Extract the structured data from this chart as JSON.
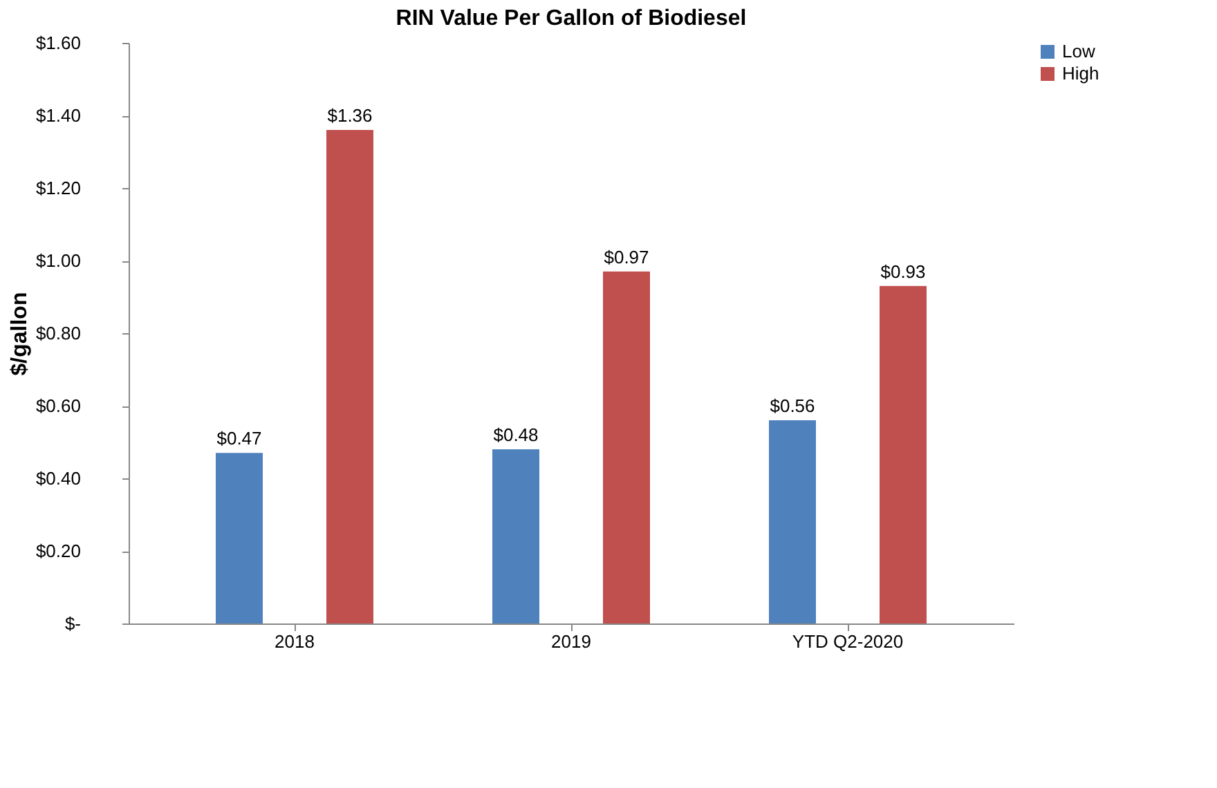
{
  "chart_data": {
    "type": "bar",
    "title": "RIN Value Per Gallon of Biodiesel",
    "ylabel": "$/gallon",
    "categories": [
      "2018",
      "2019",
      "YTD Q2-2020"
    ],
    "series": [
      {
        "name": "Low",
        "color": "#4f81bd",
        "values": [
          0.47,
          0.48,
          0.56
        ],
        "value_labels": [
          "$0.47",
          "$0.48",
          "$0.56"
        ]
      },
      {
        "name": "High",
        "color": "#c0504d",
        "values": [
          1.36,
          0.97,
          0.93
        ],
        "value_labels": [
          "$1.36",
          "$0.97",
          "$0.93"
        ]
      }
    ],
    "ylim": [
      0,
      1.6
    ],
    "yticks": [
      {
        "value": 0,
        "label": "$-"
      },
      {
        "value": 0.2,
        "label": "$0.20"
      },
      {
        "value": 0.4,
        "label": "$0.40"
      },
      {
        "value": 0.6,
        "label": "$0.60"
      },
      {
        "value": 0.8,
        "label": "$0.80"
      },
      {
        "value": 1.0,
        "label": "$1.00"
      },
      {
        "value": 1.2,
        "label": "$1.20"
      },
      {
        "value": 1.4,
        "label": "$1.40"
      },
      {
        "value": 1.6,
        "label": "$1.60"
      }
    ],
    "grid": false,
    "legend": "right"
  }
}
